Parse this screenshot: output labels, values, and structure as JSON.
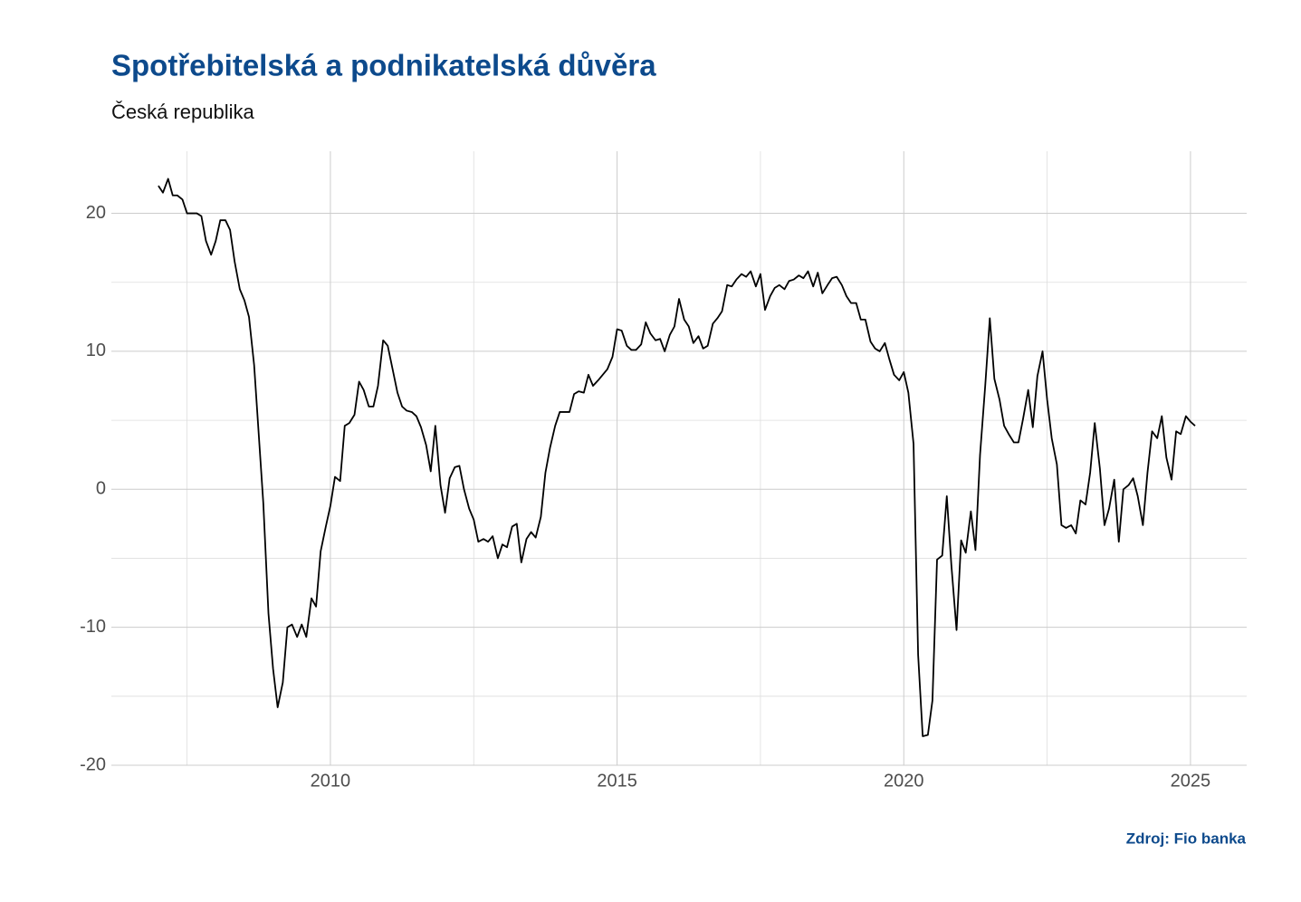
{
  "chart_data": {
    "type": "line",
    "title": "Spotřebitelská a podnikatelská důvěra",
    "subtitle": "Česká republika",
    "source": "Zdroj: Fio banka",
    "color": "#000000",
    "grid": true,
    "xlim": [
      2006.18,
      2025.98
    ],
    "xticks": [
      2010,
      2015,
      2020,
      2025
    ],
    "xminor": [
      2007.5,
      2012.5,
      2017.5,
      2022.5
    ],
    "ylim": [
      -20,
      24.5
    ],
    "yticks": [
      -20,
      -10,
      0,
      10,
      20
    ],
    "yminor": [
      -15,
      -5,
      5,
      15
    ],
    "x": [
      2007.0,
      2007.08,
      2007.17,
      2007.25,
      2007.33,
      2007.42,
      2007.5,
      2007.58,
      2007.67,
      2007.75,
      2007.83,
      2007.92,
      2008.0,
      2008.08,
      2008.17,
      2008.25,
      2008.33,
      2008.42,
      2008.5,
      2008.58,
      2008.67,
      2008.75,
      2008.83,
      2008.92,
      2009.0,
      2009.08,
      2009.17,
      2009.25,
      2009.33,
      2009.42,
      2009.5,
      2009.58,
      2009.67,
      2009.75,
      2009.83,
      2009.92,
      2010.0,
      2010.08,
      2010.17,
      2010.25,
      2010.33,
      2010.42,
      2010.5,
      2010.58,
      2010.67,
      2010.75,
      2010.83,
      2010.92,
      2011.0,
      2011.08,
      2011.17,
      2011.25,
      2011.33,
      2011.42,
      2011.5,
      2011.58,
      2011.67,
      2011.75,
      2011.83,
      2011.92,
      2012.0,
      2012.08,
      2012.17,
      2012.25,
      2012.33,
      2012.42,
      2012.5,
      2012.58,
      2012.67,
      2012.75,
      2012.83,
      2012.92,
      2013.0,
      2013.08,
      2013.17,
      2013.25,
      2013.33,
      2013.42,
      2013.5,
      2013.58,
      2013.67,
      2013.75,
      2013.83,
      2013.92,
      2014.0,
      2014.08,
      2014.17,
      2014.25,
      2014.33,
      2014.42,
      2014.5,
      2014.58,
      2014.67,
      2014.75,
      2014.83,
      2014.92,
      2015.0,
      2015.08,
      2015.17,
      2015.25,
      2015.33,
      2015.42,
      2015.5,
      2015.58,
      2015.67,
      2015.75,
      2015.83,
      2015.92,
      2016.0,
      2016.08,
      2016.17,
      2016.25,
      2016.33,
      2016.42,
      2016.5,
      2016.58,
      2016.67,
      2016.75,
      2016.83,
      2016.92,
      2017.0,
      2017.08,
      2017.17,
      2017.25,
      2017.33,
      2017.42,
      2017.5,
      2017.58,
      2017.67,
      2017.75,
      2017.83,
      2017.92,
      2018.0,
      2018.08,
      2018.17,
      2018.25,
      2018.33,
      2018.42,
      2018.5,
      2018.58,
      2018.67,
      2018.75,
      2018.83,
      2018.92,
      2019.0,
      2019.08,
      2019.17,
      2019.25,
      2019.33,
      2019.42,
      2019.5,
      2019.58,
      2019.67,
      2019.75,
      2019.83,
      2019.92,
      2020.0,
      2020.08,
      2020.17,
      2020.25,
      2020.33,
      2020.42,
      2020.5,
      2020.58,
      2020.67,
      2020.75,
      2020.83,
      2020.92,
      2021.0,
      2021.08,
      2021.17,
      2021.25,
      2021.33,
      2021.42,
      2021.5,
      2021.58,
      2021.67,
      2021.75,
      2021.83,
      2021.92,
      2022.0,
      2022.08,
      2022.17,
      2022.25,
      2022.33,
      2022.42,
      2022.5,
      2022.58,
      2022.67,
      2022.75,
      2022.83,
      2022.92,
      2023.0,
      2023.08,
      2023.17,
      2023.25,
      2023.33,
      2023.42,
      2023.5,
      2023.58,
      2023.67,
      2023.75,
      2023.83,
      2023.92,
      2024.0,
      2024.08,
      2024.17,
      2024.25,
      2024.33,
      2024.42,
      2024.5,
      2024.58,
      2024.67,
      2024.75,
      2024.83,
      2024.92,
      2025.0,
      2025.08
    ],
    "values": [
      22,
      21.5,
      22.5,
      21.3,
      21.3,
      21,
      20,
      20,
      20,
      19.8,
      18,
      17,
      18,
      19.5,
      19.5,
      18.8,
      16.5,
      14.5,
      13.7,
      12.5,
      9,
      4,
      -1,
      -9,
      -13,
      -15.8,
      -14,
      -10,
      -9.8,
      -10.7,
      -9.8,
      -10.7,
      -7.9,
      -8.5,
      -4.5,
      -2.7,
      -1.2,
      0.9,
      0.6,
      4.6,
      4.8,
      5.4,
      7.8,
      7.2,
      6,
      6,
      7.5,
      10.8,
      10.4,
      8.8,
      7,
      6,
      5.7,
      5.6,
      5.3,
      4.5,
      3.2,
      1.3,
      4.6,
      0.3,
      -1.7,
      0.8,
      1.6,
      1.7,
      0,
      -1.4,
      -2.2,
      -3.8,
      -3.6,
      -3.8,
      -3.4,
      -5,
      -4,
      -4.2,
      -2.7,
      -2.5,
      -5.3,
      -3.6,
      -3.1,
      -3.5,
      -2,
      1.2,
      3,
      4.6,
      5.6,
      5.6,
      5.6,
      6.9,
      7.1,
      7,
      8.3,
      7.5,
      7.9,
      8.3,
      8.7,
      9.6,
      11.6,
      11.5,
      10.4,
      10.1,
      10.1,
      10.5,
      12.1,
      11.3,
      10.8,
      10.9,
      10,
      11.2,
      11.8,
      13.8,
      12.3,
      11.8,
      10.6,
      11.1,
      10.2,
      10.4,
      12,
      12.4,
      12.9,
      14.8,
      14.7,
      15.2,
      15.6,
      15.4,
      15.8,
      14.7,
      15.6,
      13,
      14,
      14.6,
      14.8,
      14.5,
      15.1,
      15.2,
      15.5,
      15.3,
      15.8,
      14.7,
      15.7,
      14.2,
      14.8,
      15.3,
      15.4,
      14.8,
      14,
      13.5,
      13.5,
      12.3,
      12.3,
      10.7,
      10.2,
      10,
      10.6,
      9.4,
      8.3,
      7.9,
      8.5,
      7,
      3.3,
      -12,
      -17.9,
      -17.8,
      -15.3,
      -5.1,
      -4.8,
      -0.5,
      -5.5,
      -10.2,
      -3.7,
      -4.6,
      -1.6,
      -4.4,
      2.5,
      7.5,
      12.4,
      8,
      6.5,
      4.6,
      4,
      3.4,
      3.4,
      5.1,
      7.2,
      4.5,
      8.2,
      10,
      6.5,
      3.7,
      1.8,
      -2.6,
      -2.8,
      -2.6,
      -3.2,
      -0.8,
      -1.1,
      1.2,
      4.8,
      1.5,
      -2.6,
      -1.4,
      0.7,
      -3.8,
      0,
      0.3,
      0.8,
      -0.5,
      -2.6,
      1.2,
      4.2,
      3.7,
      5.3,
      2.3,
      0.7,
      4.2,
      4,
      5.3,
      4.9,
      4.6
    ]
  }
}
